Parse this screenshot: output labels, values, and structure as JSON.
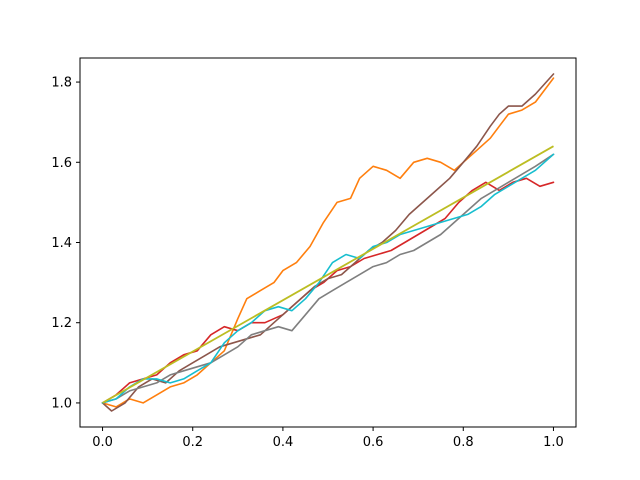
{
  "chart_data": {
    "type": "line",
    "title": "",
    "xlabel": "",
    "ylabel": "",
    "xlim": [
      -0.05,
      1.05
    ],
    "ylim": [
      0.94,
      1.86
    ],
    "xticks": [
      0.0,
      0.2,
      0.4,
      0.6,
      0.8,
      1.0
    ],
    "xtick_labels": [
      "0.0",
      "0.2",
      "0.4",
      "0.6",
      "0.8",
      "1.0"
    ],
    "yticks": [
      1.0,
      1.2,
      1.4,
      1.6,
      1.8
    ],
    "ytick_labels": [
      "1.0",
      "1.2",
      "1.4",
      "1.6",
      "1.8"
    ],
    "grid": false,
    "legend": "none",
    "series": [
      {
        "color": "#ff7f0e",
        "points": [
          [
            0.0,
            1.0
          ],
          [
            0.03,
            0.99
          ],
          [
            0.06,
            1.01
          ],
          [
            0.09,
            1.0
          ],
          [
            0.12,
            1.02
          ],
          [
            0.15,
            1.04
          ],
          [
            0.18,
            1.05
          ],
          [
            0.21,
            1.07
          ],
          [
            0.24,
            1.1
          ],
          [
            0.27,
            1.13
          ],
          [
            0.3,
            1.21
          ],
          [
            0.32,
            1.26
          ],
          [
            0.35,
            1.28
          ],
          [
            0.38,
            1.3
          ],
          [
            0.4,
            1.33
          ],
          [
            0.43,
            1.35
          ],
          [
            0.46,
            1.39
          ],
          [
            0.49,
            1.45
          ],
          [
            0.52,
            1.5
          ],
          [
            0.55,
            1.51
          ],
          [
            0.57,
            1.56
          ],
          [
            0.6,
            1.59
          ],
          [
            0.63,
            1.58
          ],
          [
            0.66,
            1.56
          ],
          [
            0.69,
            1.6
          ],
          [
            0.72,
            1.61
          ],
          [
            0.75,
            1.6
          ],
          [
            0.78,
            1.58
          ],
          [
            0.8,
            1.6
          ],
          [
            0.83,
            1.63
          ],
          [
            0.86,
            1.66
          ],
          [
            0.88,
            1.69
          ],
          [
            0.9,
            1.72
          ],
          [
            0.93,
            1.73
          ],
          [
            0.96,
            1.75
          ],
          [
            1.0,
            1.81
          ]
        ]
      },
      {
        "color": "#d62728",
        "points": [
          [
            0.0,
            1.0
          ],
          [
            0.03,
            1.02
          ],
          [
            0.06,
            1.05
          ],
          [
            0.09,
            1.06
          ],
          [
            0.12,
            1.07
          ],
          [
            0.15,
            1.1
          ],
          [
            0.18,
            1.12
          ],
          [
            0.21,
            1.13
          ],
          [
            0.24,
            1.17
          ],
          [
            0.27,
            1.19
          ],
          [
            0.3,
            1.18
          ],
          [
            0.33,
            1.2
          ],
          [
            0.36,
            1.2
          ],
          [
            0.4,
            1.22
          ],
          [
            0.43,
            1.25
          ],
          [
            0.46,
            1.28
          ],
          [
            0.49,
            1.3
          ],
          [
            0.52,
            1.33
          ],
          [
            0.55,
            1.34
          ],
          [
            0.58,
            1.36
          ],
          [
            0.61,
            1.37
          ],
          [
            0.64,
            1.38
          ],
          [
            0.67,
            1.4
          ],
          [
            0.7,
            1.42
          ],
          [
            0.73,
            1.44
          ],
          [
            0.76,
            1.46
          ],
          [
            0.79,
            1.5
          ],
          [
            0.82,
            1.53
          ],
          [
            0.85,
            1.55
          ],
          [
            0.88,
            1.53
          ],
          [
            0.91,
            1.55
          ],
          [
            0.94,
            1.56
          ],
          [
            0.97,
            1.54
          ],
          [
            1.0,
            1.55
          ]
        ]
      },
      {
        "color": "#8c564b",
        "points": [
          [
            0.0,
            1.0
          ],
          [
            0.02,
            0.98
          ],
          [
            0.05,
            1.0
          ],
          [
            0.08,
            1.04
          ],
          [
            0.11,
            1.06
          ],
          [
            0.14,
            1.05
          ],
          [
            0.17,
            1.08
          ],
          [
            0.2,
            1.1
          ],
          [
            0.23,
            1.12
          ],
          [
            0.26,
            1.14
          ],
          [
            0.29,
            1.15
          ],
          [
            0.32,
            1.16
          ],
          [
            0.35,
            1.17
          ],
          [
            0.38,
            1.2
          ],
          [
            0.41,
            1.23
          ],
          [
            0.44,
            1.26
          ],
          [
            0.47,
            1.29
          ],
          [
            0.5,
            1.31
          ],
          [
            0.53,
            1.32
          ],
          [
            0.56,
            1.35
          ],
          [
            0.59,
            1.38
          ],
          [
            0.62,
            1.4
          ],
          [
            0.65,
            1.43
          ],
          [
            0.68,
            1.47
          ],
          [
            0.71,
            1.5
          ],
          [
            0.74,
            1.53
          ],
          [
            0.77,
            1.56
          ],
          [
            0.8,
            1.6
          ],
          [
            0.83,
            1.64
          ],
          [
            0.86,
            1.69
          ],
          [
            0.88,
            1.72
          ],
          [
            0.9,
            1.74
          ],
          [
            0.93,
            1.74
          ],
          [
            0.96,
            1.77
          ],
          [
            1.0,
            1.82
          ]
        ]
      },
      {
        "color": "#7f7f7f",
        "points": [
          [
            0.0,
            1.0
          ],
          [
            0.03,
            1.01
          ],
          [
            0.06,
            1.03
          ],
          [
            0.09,
            1.04
          ],
          [
            0.12,
            1.05
          ],
          [
            0.15,
            1.07
          ],
          [
            0.18,
            1.08
          ],
          [
            0.21,
            1.09
          ],
          [
            0.24,
            1.1
          ],
          [
            0.27,
            1.12
          ],
          [
            0.3,
            1.14
          ],
          [
            0.33,
            1.17
          ],
          [
            0.36,
            1.18
          ],
          [
            0.39,
            1.19
          ],
          [
            0.42,
            1.18
          ],
          [
            0.45,
            1.22
          ],
          [
            0.48,
            1.26
          ],
          [
            0.51,
            1.28
          ],
          [
            0.54,
            1.3
          ],
          [
            0.57,
            1.32
          ],
          [
            0.6,
            1.34
          ],
          [
            0.63,
            1.35
          ],
          [
            0.66,
            1.37
          ],
          [
            0.69,
            1.38
          ],
          [
            0.72,
            1.4
          ],
          [
            0.75,
            1.42
          ],
          [
            0.78,
            1.45
          ],
          [
            0.81,
            1.48
          ],
          [
            0.84,
            1.51
          ],
          [
            0.87,
            1.53
          ],
          [
            0.9,
            1.55
          ],
          [
            0.93,
            1.57
          ],
          [
            0.96,
            1.59
          ],
          [
            1.0,
            1.62
          ]
        ]
      },
      {
        "color": "#17becf",
        "points": [
          [
            0.0,
            1.0
          ],
          [
            0.03,
            1.01
          ],
          [
            0.06,
            1.04
          ],
          [
            0.09,
            1.06
          ],
          [
            0.12,
            1.06
          ],
          [
            0.15,
            1.05
          ],
          [
            0.18,
            1.06
          ],
          [
            0.21,
            1.08
          ],
          [
            0.24,
            1.1
          ],
          [
            0.27,
            1.15
          ],
          [
            0.3,
            1.18
          ],
          [
            0.33,
            1.2
          ],
          [
            0.36,
            1.23
          ],
          [
            0.39,
            1.24
          ],
          [
            0.42,
            1.23
          ],
          [
            0.45,
            1.26
          ],
          [
            0.48,
            1.3
          ],
          [
            0.51,
            1.35
          ],
          [
            0.54,
            1.37
          ],
          [
            0.57,
            1.36
          ],
          [
            0.6,
            1.39
          ],
          [
            0.63,
            1.4
          ],
          [
            0.66,
            1.42
          ],
          [
            0.69,
            1.43
          ],
          [
            0.72,
            1.44
          ],
          [
            0.75,
            1.45
          ],
          [
            0.78,
            1.46
          ],
          [
            0.81,
            1.47
          ],
          [
            0.84,
            1.49
          ],
          [
            0.87,
            1.52
          ],
          [
            0.9,
            1.54
          ],
          [
            0.93,
            1.56
          ],
          [
            0.96,
            1.58
          ],
          [
            1.0,
            1.62
          ]
        ]
      },
      {
        "color": "#bcbd22",
        "points": [
          [
            0.0,
            1.0
          ],
          [
            1.0,
            1.64
          ]
        ]
      }
    ]
  }
}
